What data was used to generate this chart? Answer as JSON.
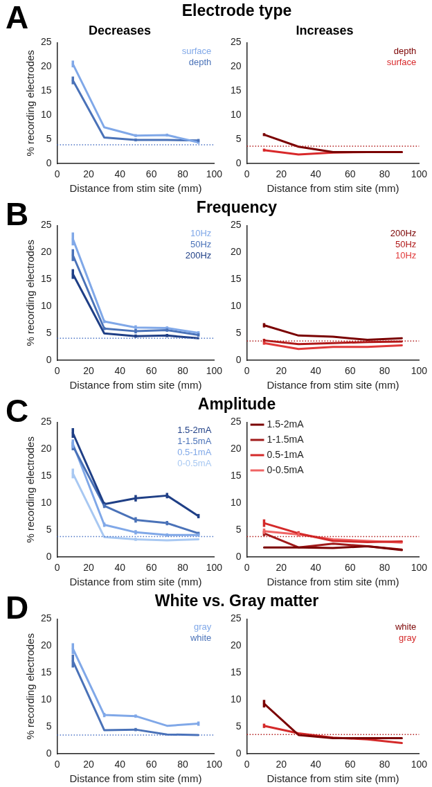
{
  "chart_data": [
    {
      "type": "line",
      "title": "Electrode type",
      "subtitle": "Decreases",
      "annotations": [
        "A"
      ],
      "xlabel": "Distance from stim site (mm)",
      "ylabel": "% recording electrodes",
      "x": [
        10,
        30,
        50,
        70,
        90
      ],
      "xlim": [
        0,
        100
      ],
      "xticks": [
        0,
        20,
        40,
        60,
        80,
        100
      ],
      "ylim": [
        0,
        25
      ],
      "yticks": [
        0,
        5,
        10,
        15,
        20,
        25
      ],
      "marker": "none",
      "line_style": "solid",
      "ref_lines": [
        {
          "axis": "y",
          "value": 3.9,
          "color": "#4a72c4",
          "line_style": "dotted"
        }
      ],
      "series": [
        {
          "name": "surface",
          "color": "#80a8e8",
          "values": [
            20.6,
            7.5,
            5.8,
            5.9,
            4.4
          ],
          "errors": [
            0.7,
            null,
            0.3,
            0.3,
            0.3
          ]
        },
        {
          "name": "depth",
          "color": "#4a72b8",
          "values": [
            17.2,
            5.4,
            4.9,
            4.9,
            4.8
          ],
          "errors": [
            0.8,
            null,
            0.3,
            null,
            0.3
          ]
        }
      ]
    },
    {
      "type": "line",
      "subtitle": "Increases",
      "xlabel": "Distance from stim site (mm)",
      "x": [
        10,
        30,
        50,
        70,
        90
      ],
      "xlim": [
        0,
        100
      ],
      "xticks": [
        0,
        20,
        40,
        60,
        80,
        100
      ],
      "ylim": [
        0,
        25
      ],
      "yticks": [
        0,
        5,
        10,
        15,
        20,
        25
      ],
      "marker": "none",
      "line_style": "solid",
      "ref_lines": [
        {
          "axis": "y",
          "value": 3.6,
          "color": "#b01818",
          "line_style": "dotted"
        }
      ],
      "series": [
        {
          "name": "depth",
          "color": "#7a0000",
          "values": [
            6.0,
            3.5,
            2.4,
            2.4,
            2.4
          ],
          "errors": [
            0.3,
            null,
            null,
            null,
            null
          ]
        },
        {
          "name": "surface",
          "color": "#d8282a",
          "values": [
            2.8,
            1.9,
            2.3,
            2.4,
            2.4
          ],
          "errors": [
            0.3,
            null,
            null,
            null,
            null
          ]
        }
      ]
    },
    {
      "type": "line",
      "title": "Frequency",
      "annotations": [
        "B"
      ],
      "xlabel": "Distance from stim site (mm)",
      "ylabel": "% recording electrodes",
      "x": [
        10,
        30,
        50,
        70,
        90
      ],
      "xlim": [
        0,
        100
      ],
      "xticks": [
        0,
        20,
        40,
        60,
        80,
        100
      ],
      "ylim": [
        0,
        25
      ],
      "yticks": [
        0,
        5,
        10,
        15,
        20,
        25
      ],
      "marker": "none",
      "line_style": "solid",
      "ref_lines": [
        {
          "axis": "y",
          "value": 4.1,
          "color": "#4a72c4",
          "line_style": "dotted"
        }
      ],
      "series": [
        {
          "name": "10Hz",
          "color": "#80a8e8",
          "values": [
            22.5,
            7.2,
            6.1,
            6.0,
            5.1
          ],
          "errors": [
            1.2,
            0.3,
            0.4,
            0.3,
            0.3
          ]
        },
        {
          "name": "50Hz",
          "color": "#4a72b8",
          "values": [
            19.5,
            5.9,
            5.4,
            5.6,
            4.7
          ],
          "errors": [
            1.1,
            0.3,
            0.4,
            0.3,
            0.3
          ]
        },
        {
          "name": "200Hz",
          "color": "#1f3f86",
          "values": [
            16.0,
            5.0,
            4.5,
            4.6,
            4.1
          ],
          "errors": [
            0.9,
            null,
            0.3,
            0.3,
            null
          ]
        }
      ]
    },
    {
      "type": "line",
      "xlabel": "Distance from stim site (mm)",
      "x": [
        10,
        30,
        50,
        70,
        90
      ],
      "xlim": [
        0,
        100
      ],
      "xticks": [
        0,
        20,
        40,
        60,
        80,
        100
      ],
      "ylim": [
        0,
        25
      ],
      "yticks": [
        0,
        5,
        10,
        15,
        20,
        25
      ],
      "marker": "none",
      "line_style": "solid",
      "ref_lines": [
        {
          "axis": "y",
          "value": 3.6,
          "color": "#b01818",
          "line_style": "dotted"
        }
      ],
      "series": [
        {
          "name": "200Hz",
          "color": "#7a0000",
          "values": [
            6.5,
            4.6,
            4.4,
            3.8,
            4.1
          ],
          "errors": [
            0.4,
            null,
            null,
            null,
            null
          ]
        },
        {
          "name": "50Hz",
          "color": "#b01818",
          "values": [
            3.7,
            3.0,
            3.2,
            3.4,
            3.5
          ],
          "errors": [
            0.3,
            null,
            null,
            null,
            null
          ]
        },
        {
          "name": "10Hz",
          "color": "#e03838",
          "values": [
            3.2,
            2.1,
            2.5,
            2.5,
            2.8
          ],
          "errors": [
            0.3,
            null,
            null,
            null,
            null
          ]
        }
      ]
    },
    {
      "type": "line",
      "title": "Amplitude",
      "annotations": [
        "C"
      ],
      "xlabel": "Distance from stim site (mm)",
      "ylabel": "% recording electrodes",
      "x": [
        10,
        30,
        50,
        70,
        90
      ],
      "xlim": [
        0,
        100
      ],
      "xticks": [
        0,
        20,
        40,
        60,
        80,
        100
      ],
      "ylim": [
        0,
        25
      ],
      "yticks": [
        0,
        5,
        10,
        15,
        20,
        25
      ],
      "marker": "none",
      "line_style": "solid",
      "ref_lines": [
        {
          "axis": "y",
          "value": 3.8,
          "color": "#4a72c4",
          "line_style": "dotted"
        }
      ],
      "series": [
        {
          "name": "1.5-2mA",
          "color": "#1f3f86",
          "values": [
            23.0,
            9.8,
            10.9,
            11.4,
            7.6
          ],
          "errors": [
            0.9,
            0.4,
            0.6,
            0.5,
            0.4
          ]
        },
        {
          "name": "1-1.5mA",
          "color": "#4a72b8",
          "values": [
            20.6,
            9.5,
            6.9,
            6.3,
            4.4
          ],
          "errors": [
            0.8,
            0.4,
            0.5,
            0.4,
            0.3
          ]
        },
        {
          "name": "0.5-1mA",
          "color": "#80a8e8",
          "values": [
            21.0,
            6.0,
            4.6,
            4.1,
            4.1
          ],
          "errors": [
            0.8,
            0.4,
            0.4,
            0.3,
            0.3
          ]
        },
        {
          "name": "0-0.5mA",
          "color": "#a8c8f2",
          "values": [
            15.5,
            3.7,
            3.3,
            3.1,
            3.3
          ],
          "errors": [
            0.9,
            null,
            0.3,
            null,
            null
          ]
        }
      ]
    },
    {
      "type": "line",
      "xlabel": "Distance from stim site (mm)",
      "x": [
        10,
        30,
        50,
        70,
        90
      ],
      "xlim": [
        0,
        100
      ],
      "xticks": [
        0,
        20,
        40,
        60,
        80,
        100
      ],
      "ylim": [
        0,
        25
      ],
      "yticks": [
        0,
        5,
        10,
        15,
        20,
        25
      ],
      "marker": "none",
      "line_style": "solid",
      "legend": "top left",
      "ref_lines": [
        {
          "axis": "y",
          "value": 3.8,
          "color": "#b01818",
          "line_style": "dotted"
        }
      ],
      "series": [
        {
          "name": "1.5-2mA",
          "color": "#7a0000",
          "values": [
            1.8,
            1.8,
            1.7,
            2.0,
            1.3
          ],
          "errors": [
            null,
            null,
            null,
            null,
            null
          ]
        },
        {
          "name": "1-1.5mA",
          "color": "#a01a1a",
          "values": [
            4.4,
            1.8,
            2.5,
            2.0,
            1.4
          ],
          "errors": [
            0.5,
            null,
            null,
            null,
            null
          ]
        },
        {
          "name": "0.5-1mA",
          "color": "#d42a2a",
          "values": [
            6.3,
            4.4,
            3.0,
            2.8,
            2.9
          ],
          "errors": [
            0.7,
            0.4,
            null,
            null,
            null
          ]
        },
        {
          "name": "0-0.5mA",
          "color": "#f06464",
          "values": [
            4.8,
            4.2,
            3.3,
            3.0,
            2.7
          ],
          "errors": [
            0.5,
            0.4,
            null,
            null,
            null
          ]
        }
      ]
    },
    {
      "type": "line",
      "title": "White vs. Gray matter",
      "annotations": [
        "D"
      ],
      "xlabel": "Distance from stim site (mm)",
      "ylabel": "% recording electrodes",
      "x": [
        10,
        30,
        50,
        70,
        90
      ],
      "xlim": [
        0,
        100
      ],
      "xticks": [
        0,
        20,
        40,
        60,
        80,
        100
      ],
      "ylim": [
        0,
        25
      ],
      "yticks": [
        0,
        5,
        10,
        15,
        20,
        25
      ],
      "marker": "none",
      "line_style": "solid",
      "ref_lines": [
        {
          "axis": "y",
          "value": 3.5,
          "color": "#4a72c4",
          "line_style": "dotted"
        }
      ],
      "series": [
        {
          "name": "gray",
          "color": "#80a8e8",
          "values": [
            19.5,
            7.2,
            7.0,
            5.2,
            5.6
          ],
          "errors": [
            1.0,
            0.4,
            0.3,
            null,
            0.4
          ]
        },
        {
          "name": "white",
          "color": "#4a72b8",
          "values": [
            17.2,
            4.4,
            4.5,
            3.6,
            3.5
          ],
          "errors": [
            1.2,
            null,
            0.3,
            null,
            null
          ]
        }
      ]
    },
    {
      "type": "line",
      "xlabel": "Distance from stim site (mm)",
      "x": [
        10,
        30,
        50,
        70,
        90
      ],
      "xlim": [
        0,
        100
      ],
      "xticks": [
        0,
        20,
        40,
        60,
        80,
        100
      ],
      "ylim": [
        0,
        25
      ],
      "yticks": [
        0,
        5,
        10,
        15,
        20,
        25
      ],
      "marker": "none",
      "line_style": "solid",
      "ref_lines": [
        {
          "axis": "y",
          "value": 3.6,
          "color": "#b01818",
          "line_style": "dotted"
        }
      ],
      "series": [
        {
          "name": "white",
          "color": "#7a0000",
          "values": [
            9.3,
            3.5,
            2.9,
            2.9,
            2.9
          ],
          "errors": [
            0.7,
            null,
            null,
            null,
            null
          ]
        },
        {
          "name": "gray",
          "color": "#d42a2a",
          "values": [
            5.2,
            3.8,
            3.0,
            2.7,
            2.0
          ],
          "errors": [
            0.4,
            null,
            null,
            null,
            null
          ]
        }
      ]
    }
  ]
}
